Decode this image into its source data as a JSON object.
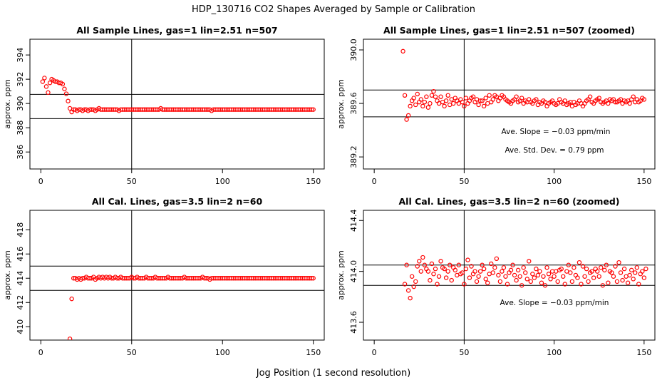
{
  "page": {
    "title": "HDP_130716  CO2 Shapes Averaged by Sample or Calibration",
    "xlabel": "Jog Position (1 second resolution)"
  },
  "chart_data": [
    {
      "type": "scatter",
      "title": "All Sample Lines, gas=1 lin=2.51 n=507",
      "xlabel": "",
      "ylabel": "approx. ppm",
      "xlim": [
        -6,
        156
      ],
      "ylim": [
        384.6,
        395.3
      ],
      "xticks": [
        0,
        50,
        100,
        150
      ],
      "yticks": [
        386,
        388,
        390,
        392,
        394
      ],
      "hlines": [
        390.75,
        388.75
      ],
      "vline": 50,
      "color": "#ff0000",
      "x_start": 1,
      "y": [
        391.8,
        392.1,
        391.4,
        390.9,
        391.7,
        392.0,
        391.9,
        391.8,
        391.8,
        391.7,
        391.7,
        391.6,
        391.2,
        390.8,
        390.2,
        389.6,
        389.3,
        389.5,
        389.5,
        389.4,
        389.5,
        389.5,
        389.4,
        389.5,
        389.5,
        389.4,
        389.5,
        389.5,
        389.5,
        389.4,
        389.5,
        389.6,
        389.5,
        389.5,
        389.5,
        389.5,
        389.5,
        389.5,
        389.5,
        389.5,
        389.5,
        389.5,
        389.4,
        389.5,
        389.5,
        389.5,
        389.5,
        389.5,
        389.5,
        389.5,
        389.5,
        389.5,
        389.5,
        389.5,
        389.5,
        389.5,
        389.5,
        389.5,
        389.5,
        389.5,
        389.5,
        389.5,
        389.5,
        389.5,
        389.5,
        389.6,
        389.5,
        389.5,
        389.5,
        389.5,
        389.5,
        389.5,
        389.5,
        389.5,
        389.5,
        389.5,
        389.5,
        389.5,
        389.5,
        389.5,
        389.5,
        389.5,
        389.5,
        389.5,
        389.5,
        389.5,
        389.5,
        389.5,
        389.5,
        389.5,
        389.5,
        389.5,
        389.5,
        389.4,
        389.5,
        389.5,
        389.5,
        389.5,
        389.5,
        389.5,
        389.5,
        389.5,
        389.5,
        389.5,
        389.5,
        389.5,
        389.5,
        389.5,
        389.5,
        389.5,
        389.5,
        389.5,
        389.5,
        389.5,
        389.5,
        389.5,
        389.5,
        389.5,
        389.5,
        389.5,
        389.5,
        389.5,
        389.5,
        389.5,
        389.5,
        389.5,
        389.5,
        389.5,
        389.5,
        389.5,
        389.5,
        389.5,
        389.5,
        389.5,
        389.5,
        389.5,
        389.5,
        389.5,
        389.5,
        389.5,
        389.5,
        389.5,
        389.5,
        389.5,
        389.5,
        389.5,
        389.5,
        389.5,
        389.5,
        389.5
      ],
      "annotations": []
    },
    {
      "type": "scatter",
      "title": "All Sample Lines, gas=1 lin=2.51 n=507 (zoomed)",
      "xlabel": "",
      "ylabel": "approx. ppm",
      "xlim": [
        -6,
        156
      ],
      "ylim": [
        389.11,
        390.08
      ],
      "xticks": [
        0,
        50,
        100,
        150
      ],
      "yticks": [
        389.2,
        389.6,
        390.0
      ],
      "hlines": [
        389.7,
        389.5
      ],
      "vline": 50,
      "color": "#ff0000",
      "x_start": 16,
      "y": [
        389.99,
        389.66,
        389.48,
        389.51,
        389.58,
        389.62,
        389.64,
        389.59,
        389.67,
        389.61,
        389.63,
        389.58,
        389.61,
        389.65,
        389.57,
        389.6,
        389.66,
        389.69,
        389.65,
        389.62,
        389.6,
        389.65,
        389.61,
        389.58,
        389.62,
        389.66,
        389.59,
        389.63,
        389.6,
        389.64,
        389.62,
        389.6,
        389.63,
        389.61,
        389.58,
        389.64,
        389.6,
        389.62,
        389.64,
        389.65,
        389.61,
        389.63,
        389.59,
        389.62,
        389.62,
        389.58,
        389.64,
        389.6,
        389.66,
        389.61,
        389.63,
        389.66,
        389.65,
        389.62,
        389.64,
        389.66,
        389.65,
        389.63,
        389.62,
        389.61,
        389.6,
        389.62,
        389.63,
        389.65,
        389.61,
        389.62,
        389.64,
        389.6,
        389.62,
        389.61,
        389.63,
        389.61,
        389.6,
        389.62,
        389.63,
        389.59,
        389.61,
        389.6,
        389.62,
        389.61,
        389.58,
        389.6,
        389.61,
        389.62,
        389.6,
        389.59,
        389.6,
        389.63,
        389.61,
        389.6,
        389.62,
        389.59,
        389.6,
        389.61,
        389.58,
        389.61,
        389.59,
        389.6,
        389.62,
        389.6,
        389.58,
        389.6,
        389.62,
        389.63,
        389.65,
        389.61,
        389.6,
        389.62,
        389.63,
        389.64,
        389.61,
        389.6,
        389.61,
        389.62,
        389.6,
        389.63,
        389.62,
        389.63,
        389.61,
        389.61,
        389.62,
        389.63,
        389.6,
        389.62,
        389.61,
        389.62,
        389.6,
        389.63,
        389.65,
        389.61,
        389.63,
        389.61,
        389.62,
        389.64,
        389.63
      ],
      "annotations": [
        "Ave. Slope =  −0.03  ppm/min",
        "Ave. Std. Dev. =  0.79  ppm"
      ]
    },
    {
      "type": "scatter",
      "title": "All Cal. Lines, gas=3.5 lin=2 n=60",
      "xlabel": "",
      "ylabel": "approx. ppm",
      "xlim": [
        -6,
        156
      ],
      "ylim": [
        408.9,
        419.6
      ],
      "xticks": [
        0,
        50,
        100,
        150
      ],
      "yticks": [
        410,
        412,
        414,
        416,
        418
      ],
      "hlines": [
        415.0,
        413.0
      ],
      "vline": 50,
      "color": "#ff0000",
      "x_start": 16,
      "y": [
        409.0,
        412.3,
        414.0,
        414.0,
        413.9,
        414.0,
        413.9,
        414.0,
        414.0,
        414.1,
        414.0,
        414.0,
        414.0,
        414.1,
        413.9,
        414.0,
        414.1,
        414.0,
        414.1,
        414.0,
        414.1,
        414.0,
        414.1,
        414.0,
        414.0,
        414.1,
        414.0,
        414.0,
        414.1,
        414.0,
        414.0,
        414.0,
        414.0,
        414.0,
        414.1,
        414.0,
        414.0,
        414.1,
        414.0,
        414.0,
        414.0,
        414.0,
        414.1,
        414.0,
        414.0,
        414.0,
        414.0,
        414.1,
        414.0,
        414.0,
        414.0,
        414.0,
        414.0,
        414.0,
        414.1,
        414.0,
        414.0,
        414.0,
        414.0,
        414.0,
        414.0,
        414.0,
        414.0,
        414.1,
        414.0,
        414.0,
        414.0,
        414.0,
        414.0,
        414.0,
        414.0,
        414.0,
        414.0,
        414.1,
        414.0,
        414.0,
        414.0,
        413.9,
        414.0,
        414.0,
        414.0,
        414.0,
        414.0,
        414.0,
        414.0,
        414.0,
        414.0,
        414.0,
        414.0,
        414.0,
        414.0,
        414.0,
        414.0,
        414.0,
        414.0,
        414.0,
        414.0,
        414.0,
        414.0,
        414.0,
        414.0,
        414.0,
        414.0,
        414.0,
        414.0,
        414.0,
        414.0,
        414.0,
        414.0,
        414.0,
        414.0,
        414.0,
        414.0,
        414.0,
        414.0,
        414.0,
        414.0,
        414.0,
        414.0,
        414.0,
        414.0,
        414.0,
        414.0,
        414.0,
        414.0,
        414.0,
        414.0,
        414.0,
        414.0,
        414.0,
        414.0,
        414.0,
        414.0,
        414.0,
        414.0
      ],
      "annotations": []
    },
    {
      "type": "scatter",
      "title": "All Cal. Lines, gas=3.5 lin=2 n=60 (zoomed)",
      "xlabel": "",
      "ylabel": "approx. ppm",
      "xlim": [
        -6,
        156
      ],
      "ylim": [
        413.46,
        414.48
      ],
      "xticks": [
        0,
        50,
        100,
        150
      ],
      "yticks": [
        413.6,
        414.0,
        414.4
      ],
      "hlines": [
        414.05,
        413.89
      ],
      "vline": 50,
      "color": "#ff0000",
      "x_start": 17,
      "y": [
        413.9,
        414.05,
        413.85,
        413.79,
        413.96,
        413.88,
        413.92,
        414.04,
        414.08,
        414.0,
        414.11,
        414.05,
        414.02,
        414.0,
        413.93,
        414.06,
        413.98,
        414.02,
        413.9,
        413.96,
        414.08,
        414.03,
        414.02,
        413.95,
        414.0,
        414.05,
        413.93,
        414.03,
        414.01,
        413.97,
        414.05,
        413.98,
        413.99,
        413.9,
        414.02,
        414.09,
        413.95,
        414.04,
        413.98,
        414.0,
        413.92,
        413.96,
        414.0,
        414.05,
        414.02,
        413.94,
        413.91,
        413.98,
        414.06,
        413.99,
        414.03,
        414.1,
        413.97,
        413.92,
        414.0,
        414.03,
        413.96,
        413.9,
        413.99,
        414.01,
        414.05,
        413.97,
        413.93,
        414.01,
        413.96,
        413.89,
        414.03,
        413.99,
        413.94,
        414.08,
        413.92,
        413.98,
        413.95,
        414.02,
        413.97,
        414.0,
        413.91,
        413.96,
        413.89,
        414.03,
        413.98,
        413.94,
        414.0,
        413.96,
        414.0,
        413.92,
        414.01,
        414.02,
        413.96,
        413.9,
        414.0,
        414.05,
        413.99,
        413.92,
        414.03,
        413.97,
        413.95,
        414.07,
        413.9,
        414.04,
        413.96,
        414.02,
        413.92,
        413.99,
        414.0,
        413.95,
        414.02,
        414.0,
        413.96,
        414.03,
        413.89,
        414.01,
        414.05,
        413.91,
        414.0,
        413.99,
        413.96,
        414.04,
        413.92,
        414.07,
        413.99,
        413.93,
        414.02,
        413.96,
        413.91,
        413.97,
        414.01,
        413.94,
        413.99,
        414.03,
        413.9,
        413.98,
        414.0,
        413.95,
        414.02
      ],
      "annotations": [
        "Ave. Slope =  −0.03  ppm/min"
      ]
    }
  ]
}
